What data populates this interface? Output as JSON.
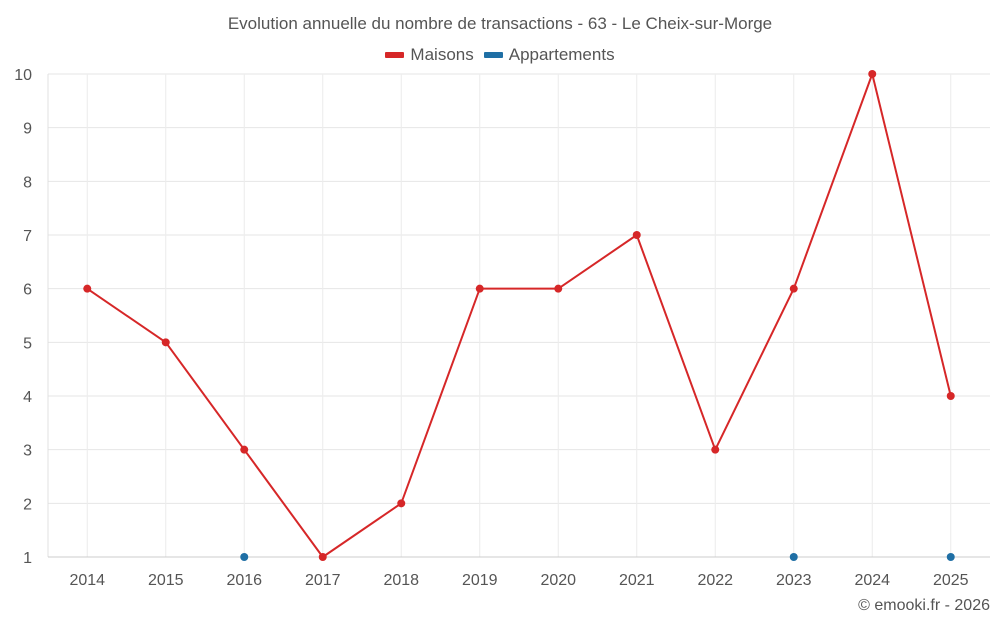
{
  "chart_data": {
    "type": "line",
    "title": "Evolution annuelle du nombre de transactions - 63 - Le Cheix-sur-Morge",
    "categories": [
      "2014",
      "2015",
      "2016",
      "2017",
      "2018",
      "2019",
      "2020",
      "2021",
      "2022",
      "2023",
      "2024",
      "2025"
    ],
    "series": [
      {
        "name": "Maisons",
        "color": "#d62728",
        "values": [
          6,
          5,
          3,
          1,
          2,
          6,
          6,
          7,
          3,
          6,
          10,
          4
        ]
      },
      {
        "name": "Appartements",
        "color": "#1f6fa5",
        "values": [
          null,
          null,
          1,
          null,
          null,
          null,
          null,
          null,
          null,
          1,
          null,
          1
        ]
      }
    ],
    "ylim": [
      1,
      10
    ],
    "yticks": [
      "1",
      "2",
      "3",
      "4",
      "5",
      "6",
      "7",
      "8",
      "9",
      "10"
    ],
    "xlabel": "",
    "ylabel": "",
    "grid": true,
    "legend": "top-center"
  },
  "footer": {
    "credit": "© emooki.fr - 2026"
  }
}
